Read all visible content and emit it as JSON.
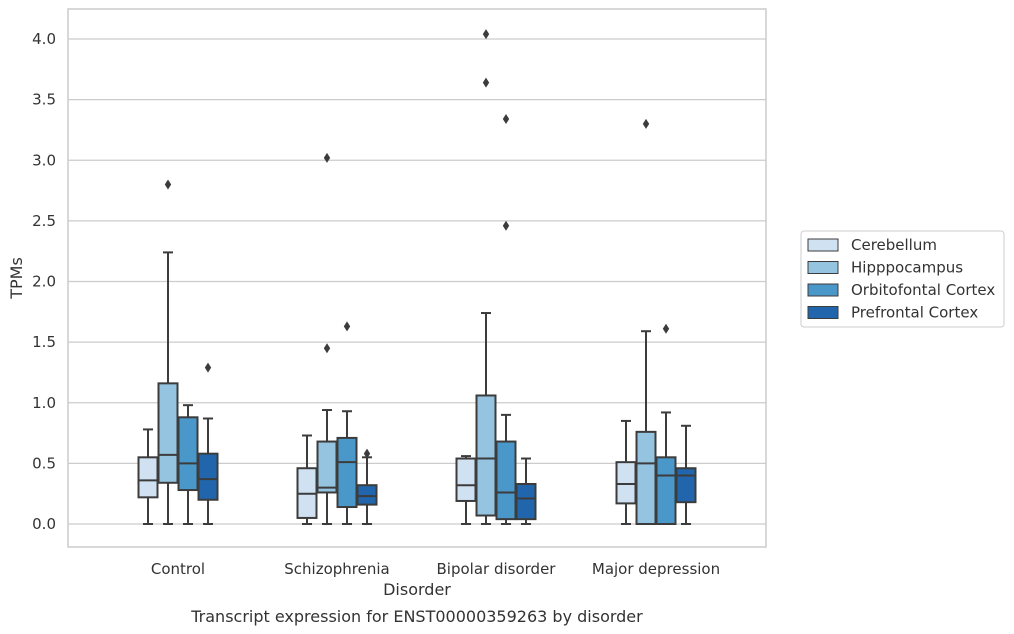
{
  "caption": "Transcript expression for ENST00000359263 by disorder",
  "chart_data": {
    "type": "box",
    "xlabel": "Disorder",
    "ylabel": "TPMs",
    "ylim": [
      -0.2,
      4.25
    ],
    "yticks": [
      "0.0",
      "0.5",
      "1.0",
      "1.5",
      "2.0",
      "2.5",
      "3.0",
      "3.5",
      "4.0"
    ],
    "grid": "horizontal",
    "legend_position": "right",
    "categories": [
      "Control",
      "Schizophrenia",
      "Bipolar disorder",
      "Major depression"
    ],
    "series": [
      {
        "name": "Cerebellum",
        "color": "#d0e1f2",
        "boxes": [
          {
            "min": 0.0,
            "q1": 0.22,
            "median": 0.36,
            "q3": 0.55,
            "max": 0.78,
            "outliers": []
          },
          {
            "min": 0.0,
            "q1": 0.05,
            "median": 0.25,
            "q3": 0.46,
            "max": 0.73,
            "outliers": []
          },
          {
            "min": 0.0,
            "q1": 0.19,
            "median": 0.32,
            "q3": 0.54,
            "max": 0.56,
            "outliers": []
          },
          {
            "min": 0.0,
            "q1": 0.17,
            "median": 0.33,
            "q3": 0.51,
            "max": 0.85,
            "outliers": []
          }
        ]
      },
      {
        "name": "Hipppocampus",
        "color": "#94c4df",
        "boxes": [
          {
            "min": 0.0,
            "q1": 0.34,
            "median": 0.57,
            "q3": 1.16,
            "max": 2.24,
            "outliers": [
              2.8
            ]
          },
          {
            "min": 0.0,
            "q1": 0.26,
            "median": 0.3,
            "q3": 0.68,
            "max": 0.94,
            "outliers": [
              1.45,
              3.02
            ]
          },
          {
            "min": 0.0,
            "q1": 0.07,
            "median": 0.54,
            "q3": 1.06,
            "max": 1.74,
            "outliers": [
              3.64,
              4.04
            ]
          },
          {
            "min": 0.0,
            "q1": 0.0,
            "median": 0.5,
            "q3": 0.76,
            "max": 1.59,
            "outliers": [
              3.3
            ]
          }
        ]
      },
      {
        "name": "Orbitofontal Cortex",
        "color": "#4a98c9",
        "boxes": [
          {
            "min": 0.0,
            "q1": 0.28,
            "median": 0.5,
            "q3": 0.88,
            "max": 0.98,
            "outliers": []
          },
          {
            "min": 0.0,
            "q1": 0.14,
            "median": 0.51,
            "q3": 0.71,
            "max": 0.93,
            "outliers": [
              1.63
            ]
          },
          {
            "min": 0.0,
            "q1": 0.04,
            "median": 0.26,
            "q3": 0.68,
            "max": 0.9,
            "outliers": [
              2.46,
              3.34
            ]
          },
          {
            "min": 0.0,
            "q1": 0.0,
            "median": 0.4,
            "q3": 0.55,
            "max": 0.92,
            "outliers": [
              1.61
            ]
          }
        ]
      },
      {
        "name": "Prefrontal Cortex",
        "color": "#2166ac",
        "boxes": [
          {
            "min": 0.0,
            "q1": 0.2,
            "median": 0.37,
            "q3": 0.58,
            "max": 0.87,
            "outliers": [
              1.29
            ]
          },
          {
            "min": 0.0,
            "q1": 0.16,
            "median": 0.23,
            "q3": 0.32,
            "max": 0.55,
            "outliers": [
              0.58
            ]
          },
          {
            "min": 0.0,
            "q1": 0.04,
            "median": 0.21,
            "q3": 0.33,
            "max": 0.54,
            "outliers": []
          },
          {
            "min": 0.0,
            "q1": 0.18,
            "median": 0.4,
            "q3": 0.46,
            "max": 0.81,
            "outliers": []
          }
        ]
      }
    ]
  }
}
